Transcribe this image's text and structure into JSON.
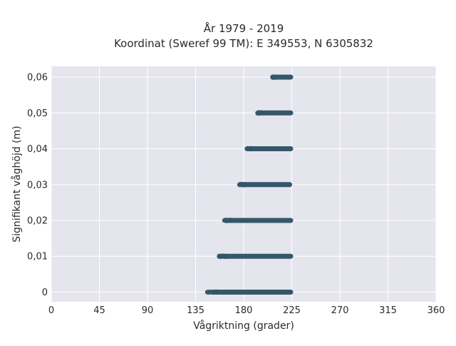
{
  "chart_data": {
    "type": "scatter",
    "title_lines": [
      "År 1979 - 2019",
      "Koordinat (Sweref 99 TM): E 349553, N 6305832"
    ],
    "xlabel": "Vågriktning (grader)",
    "ylabel": "Signifikant våghöjd (m)",
    "xlim": [
      0,
      360
    ],
    "ylim": [
      -0.0027,
      0.063
    ],
    "xticks": [
      0,
      45,
      90,
      135,
      180,
      225,
      270,
      315,
      360
    ],
    "xtick_labels": [
      "0",
      "45",
      "90",
      "135",
      "180",
      "225",
      "270",
      "315",
      "360"
    ],
    "yticks": [
      0,
      0.01,
      0.02,
      0.03,
      0.04,
      0.05,
      0.06
    ],
    "ytick_labels": [
      "0",
      "0,01",
      "0,02",
      "0,03",
      "0,04",
      "0,05",
      "0,06"
    ],
    "grid": true,
    "series": [
      {
        "color": "#355868",
        "bands": [
          {
            "y": 0.0,
            "x_min": 146,
            "x_max": 224
          },
          {
            "y": 0.01,
            "x_min": 157,
            "x_max": 224
          },
          {
            "y": 0.02,
            "x_min": 162,
            "x_max": 224
          },
          {
            "y": 0.03,
            "x_min": 176,
            "x_max": 223
          },
          {
            "y": 0.04,
            "x_min": 183,
            "x_max": 224
          },
          {
            "y": 0.05,
            "x_min": 193,
            "x_max": 224
          },
          {
            "y": 0.06,
            "x_min": 207,
            "x_max": 224
          }
        ]
      }
    ]
  }
}
